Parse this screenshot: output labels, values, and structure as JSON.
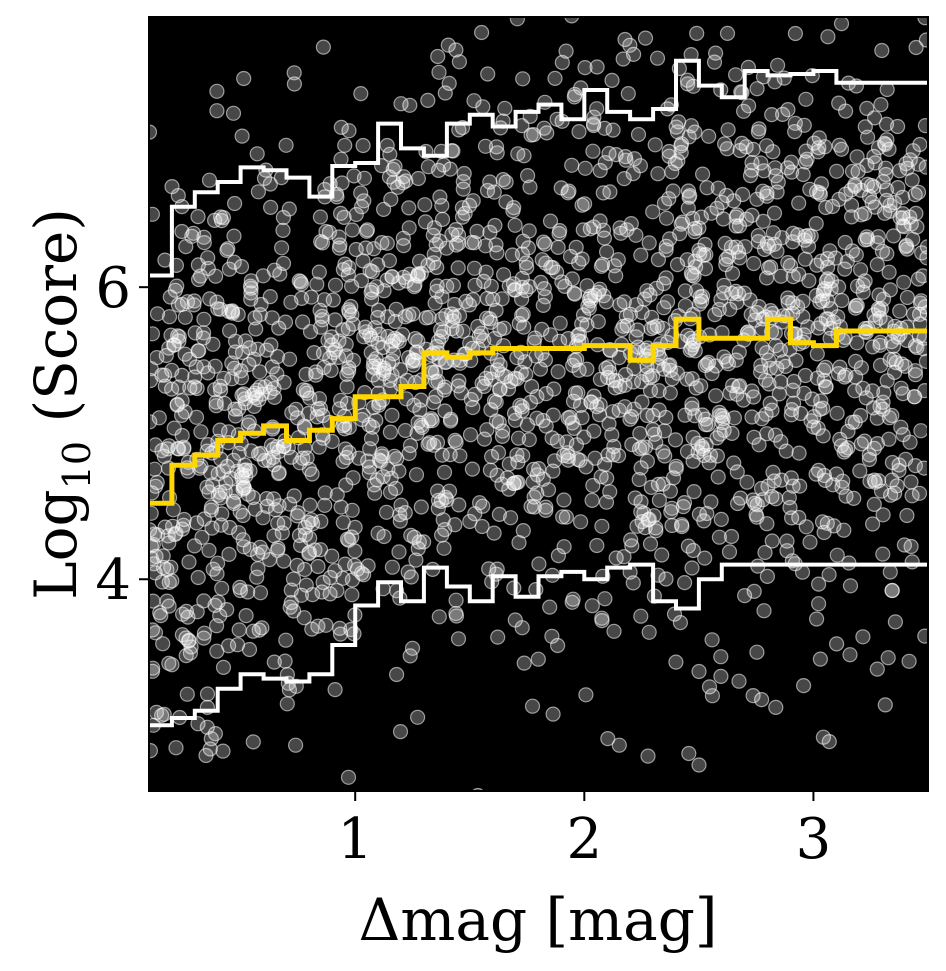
{
  "chart_data": {
    "type": "scatter",
    "title": "",
    "xlabel": "Δmag [mag]",
    "ylabel_main": "Log",
    "ylabel_sub": "10",
    "ylabel_rest": " (Score)",
    "xlim": [
      0.1,
      3.5
    ],
    "ylim": [
      2.55,
      7.85
    ],
    "xticks": [
      {
        "value": 1,
        "label": "1"
      },
      {
        "value": 2,
        "label": "2"
      },
      {
        "value": 3,
        "label": "3"
      }
    ],
    "yticks": [
      {
        "value": 4,
        "label": "4"
      },
      {
        "value": 6,
        "label": "6"
      }
    ],
    "grid": false,
    "legend": "none",
    "background_color": "#000000",
    "point_color": "#ffffff",
    "bin_edges": [
      0.1,
      0.2,
      0.3,
      0.4,
      0.5,
      0.6,
      0.7,
      0.8,
      0.9,
      1.0,
      1.1,
      1.2,
      1.3,
      1.4,
      1.5,
      1.6,
      1.7,
      1.8,
      1.9,
      2.0,
      2.1,
      2.2,
      2.3,
      2.4,
      2.5,
      2.6,
      2.7,
      2.8,
      2.9,
      3.0,
      3.1,
      3.2,
      3.3,
      3.4,
      3.5
    ],
    "series": [
      {
        "role": "upper",
        "color": "#ffffff",
        "values": [
          6.08,
          6.55,
          6.65,
          6.72,
          6.82,
          6.8,
          6.75,
          6.62,
          6.83,
          6.85,
          7.12,
          6.95,
          6.9,
          7.12,
          7.18,
          7.1,
          7.2,
          7.25,
          7.15,
          7.35,
          7.2,
          7.15,
          7.22,
          7.55,
          7.38,
          7.3,
          7.48,
          7.45,
          7.46,
          7.48,
          7.4,
          7.4,
          7.4,
          7.4
        ]
      },
      {
        "role": "median",
        "color": "#ffd700",
        "values": [
          4.52,
          4.78,
          4.85,
          4.95,
          5.0,
          5.05,
          4.95,
          5.02,
          5.1,
          5.25,
          5.25,
          5.32,
          5.55,
          5.52,
          5.55,
          5.58,
          5.58,
          5.58,
          5.58,
          5.6,
          5.6,
          5.5,
          5.6,
          5.78,
          5.65,
          5.65,
          5.65,
          5.78,
          5.62,
          5.6,
          5.7,
          5.7,
          5.7,
          5.7
        ]
      },
      {
        "role": "lower",
        "color": "#ffffff",
        "values": [
          3.0,
          3.05,
          3.1,
          3.25,
          3.35,
          3.32,
          3.3,
          3.35,
          3.55,
          3.82,
          3.98,
          3.85,
          4.08,
          3.95,
          3.85,
          4.02,
          3.88,
          4.02,
          4.05,
          4.0,
          4.08,
          4.1,
          3.85,
          3.8,
          4.0,
          4.1,
          4.1,
          4.1,
          4.1,
          4.1,
          4.1,
          4.1,
          4.1,
          4.1
        ]
      }
    ]
  }
}
